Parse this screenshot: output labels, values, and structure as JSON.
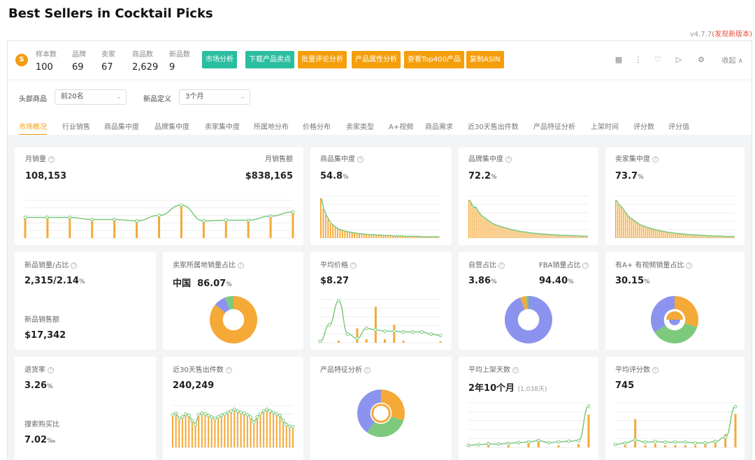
{
  "title": "Best Sellers in Cocktail Picks",
  "version": {
    "num": "v4.7.7",
    "update": "(发现新版本)"
  },
  "logo": "S",
  "stats": [
    {
      "label": "样本数",
      "value": "100"
    },
    {
      "label": "品牌",
      "value": "69"
    },
    {
      "label": "卖家",
      "value": "67"
    },
    {
      "label": "商品数",
      "value": "2,629"
    },
    {
      "label": "新品数",
      "value": "9"
    }
  ],
  "buttons": [
    {
      "label": "市场分析",
      "color": "#2bbd9f"
    },
    {
      "label": "下载产品卖点",
      "color": "#2bbd9f"
    },
    {
      "label": "批量评论分析",
      "color": "#f59e0b"
    },
    {
      "label": "产品属性分析",
      "color": "#f59e0b"
    },
    {
      "label": "查看Top400产品",
      "color": "#f59e0b"
    },
    {
      "label": "复制ASIN",
      "color": "#f59e0b"
    }
  ],
  "toolbar": {
    "icons": [
      "grid-icon",
      "more-icon",
      "heart-icon",
      "play-icon",
      "settings-icon"
    ],
    "collapse": "收起"
  },
  "filters": [
    {
      "label": "头部商品",
      "value": "前20名"
    },
    {
      "label": "新品定义",
      "value": "3个月"
    }
  ],
  "tabs": [
    "市场概况",
    "行业销售",
    "商品集中度",
    "品牌集中度",
    "卖家集中度",
    "所属地分布",
    "价格分布",
    "卖家类型",
    "A+视频",
    "商品需求",
    "近30天售出件数",
    "产品特征分析",
    "上架时间",
    "评分数",
    "评分值"
  ],
  "cards": {
    "monthly": {
      "label": "月销量",
      "value": "108,153",
      "label2": "月销售额",
      "value2": "$838,165"
    },
    "product_conc": {
      "label": "商品集中度",
      "value": "54.8",
      "unit": "%"
    },
    "brand_conc": {
      "label": "品牌集中度",
      "value": "72.2",
      "unit": "%"
    },
    "seller_conc": {
      "label": "卖家集中度",
      "value": "73.7",
      "unit": "%"
    },
    "new_sales": {
      "label": "新品销量/占比",
      "value": "2,315/2.14",
      "unit": "%",
      "label2": "新品销售额",
      "value2": "$17,342"
    },
    "seller_origin": {
      "label": "卖家所属地销量占比",
      "country": "中国",
      "value": "86.07",
      "unit": "%"
    },
    "avg_price": {
      "label": "平均价格",
      "value": "$8.27"
    },
    "self_fba": {
      "label": "自营占比",
      "value": "3.86",
      "unit": "%",
      "label2": "FBA销量占比",
      "value2": "94.40",
      "unit2": "%"
    },
    "aplus": {
      "label": "有A+ 有视频销量占比",
      "value": "30.15",
      "unit": "%"
    },
    "return": {
      "label": "退货率",
      "value": "3.26",
      "unit": "%",
      "label2": "搜索购买比",
      "value2": "7.02",
      "unit2": "‰"
    },
    "sold30": {
      "label": "近30天售出件数",
      "value": "240,249"
    },
    "features": {
      "label": "产品特征分析"
    },
    "avg_days": {
      "label": "平均上架天数",
      "value": "2年10个月",
      "sub": "(1,038天)"
    },
    "avg_rating": {
      "label": "平均评分数",
      "value": "745"
    }
  },
  "chart_data": [
    {
      "type": "bar",
      "id": "monthly",
      "values": [
        30,
        30,
        30,
        27,
        27,
        25,
        33,
        48,
        25,
        26,
        26,
        32,
        38
      ],
      "line": [
        30,
        30,
        30,
        27,
        27,
        25,
        33,
        48,
        25,
        26,
        26,
        32,
        38
      ],
      "ylim": [
        0,
        55
      ]
    },
    {
      "type": "bar",
      "id": "product_conc",
      "decay": true,
      "values": [
        95,
        70,
        55,
        45,
        35,
        30,
        26,
        22,
        20,
        18,
        16,
        15,
        14,
        13,
        12,
        11,
        10,
        10,
        9,
        9,
        8,
        8,
        8,
        7,
        7,
        7,
        6,
        6,
        6,
        6,
        5,
        5,
        5,
        5,
        5,
        4,
        4,
        4,
        4,
        4,
        4,
        4,
        3,
        3,
        3,
        3,
        3,
        3,
        3,
        3
      ],
      "ylim": [
        0,
        100
      ]
    },
    {
      "type": "bar",
      "id": "brand_conc",
      "decay": true,
      "values": [
        100,
        92,
        80,
        82,
        74,
        66,
        60,
        55,
        52,
        48,
        44,
        40,
        37,
        35,
        33,
        31,
        30,
        28,
        27,
        25,
        24,
        22,
        21,
        20,
        19,
        18,
        17,
        16,
        16,
        15,
        14,
        13,
        13,
        12,
        12,
        11,
        11,
        10,
        10,
        10,
        9,
        9,
        9,
        8,
        8,
        8,
        7,
        7,
        7,
        7,
        6,
        6,
        6,
        6,
        6,
        5,
        5,
        5,
        5,
        5
      ],
      "ylim": [
        0,
        110
      ]
    },
    {
      "type": "bar",
      "id": "seller_conc",
      "decay": true,
      "values": [
        100,
        90,
        85,
        80,
        72,
        65,
        58,
        53,
        50,
        46,
        42,
        38,
        35,
        33,
        31,
        29,
        27,
        26,
        24,
        23,
        21,
        20,
        19,
        18,
        17,
        16,
        15,
        15,
        14,
        13,
        12,
        12,
        11,
        11,
        10,
        10,
        9,
        9,
        9,
        8,
        8,
        8,
        7,
        7,
        7,
        6,
        6,
        6,
        6,
        5,
        5,
        5,
        5,
        5,
        4,
        4,
        4,
        4,
        4,
        4
      ],
      "ylim": [
        0,
        110
      ]
    },
    {
      "type": "pie",
      "id": "seller_origin",
      "values": [
        86.07,
        8,
        5.93
      ],
      "colors": [
        "#f5a937",
        "#8b93ee",
        "#7dc97d"
      ]
    },
    {
      "type": "bar",
      "id": "avg_price",
      "bars": [
        0,
        0,
        3,
        0,
        20,
        5,
        50,
        5,
        25,
        3,
        0,
        0,
        0,
        2
      ],
      "line": [
        2,
        25,
        58,
        12,
        6,
        20,
        18,
        16,
        16,
        15,
        15,
        15,
        12,
        10
      ],
      "ylim": [
        0,
        60
      ]
    },
    {
      "type": "pie",
      "id": "self_fba",
      "values": [
        94.4,
        3.86,
        1.74
      ],
      "colors": [
        "#8b93ee",
        "#f5a937",
        "#7dc97d"
      ]
    },
    {
      "type": "pie",
      "id": "aplus",
      "values": [
        30.15,
        36,
        33.85
      ],
      "colors": [
        "#f5a937",
        "#7dc97d",
        "#8b93ee"
      ]
    },
    {
      "type": "bar",
      "id": "sold30",
      "values": [
        43,
        45,
        38,
        40,
        44,
        42,
        35,
        30,
        43,
        45,
        44,
        42,
        40,
        38,
        40,
        42,
        44,
        46,
        48,
        50,
        48,
        46,
        45,
        43,
        40,
        33,
        40,
        44,
        48,
        50,
        48,
        46,
        44,
        42,
        35,
        30,
        28,
        27
      ],
      "ylim": [
        0,
        55
      ]
    },
    {
      "type": "pie",
      "id": "features",
      "values": [
        30,
        30,
        40
      ],
      "colors": [
        "#f5a937",
        "#7dc97d",
        "#8b93ee"
      ]
    },
    {
      "type": "bar",
      "id": "avg_days",
      "bars": [
        0,
        0,
        8,
        0,
        3,
        0,
        6,
        12,
        0,
        3,
        0,
        5,
        48
      ],
      "line": [
        3,
        4,
        5,
        5,
        6,
        7,
        8,
        10,
        7,
        8,
        9,
        10,
        60
      ],
      "ylim": [
        0,
        65
      ]
    },
    {
      "type": "bar",
      "id": "avg_rating",
      "bars": [
        0,
        3,
        38,
        3,
        5,
        3,
        3,
        3,
        3,
        4,
        6,
        18,
        45
      ],
      "line": [
        4,
        6,
        10,
        7,
        8,
        7,
        7,
        7,
        6,
        6,
        8,
        14,
        55
      ],
      "ylim": [
        0,
        60
      ]
    }
  ]
}
